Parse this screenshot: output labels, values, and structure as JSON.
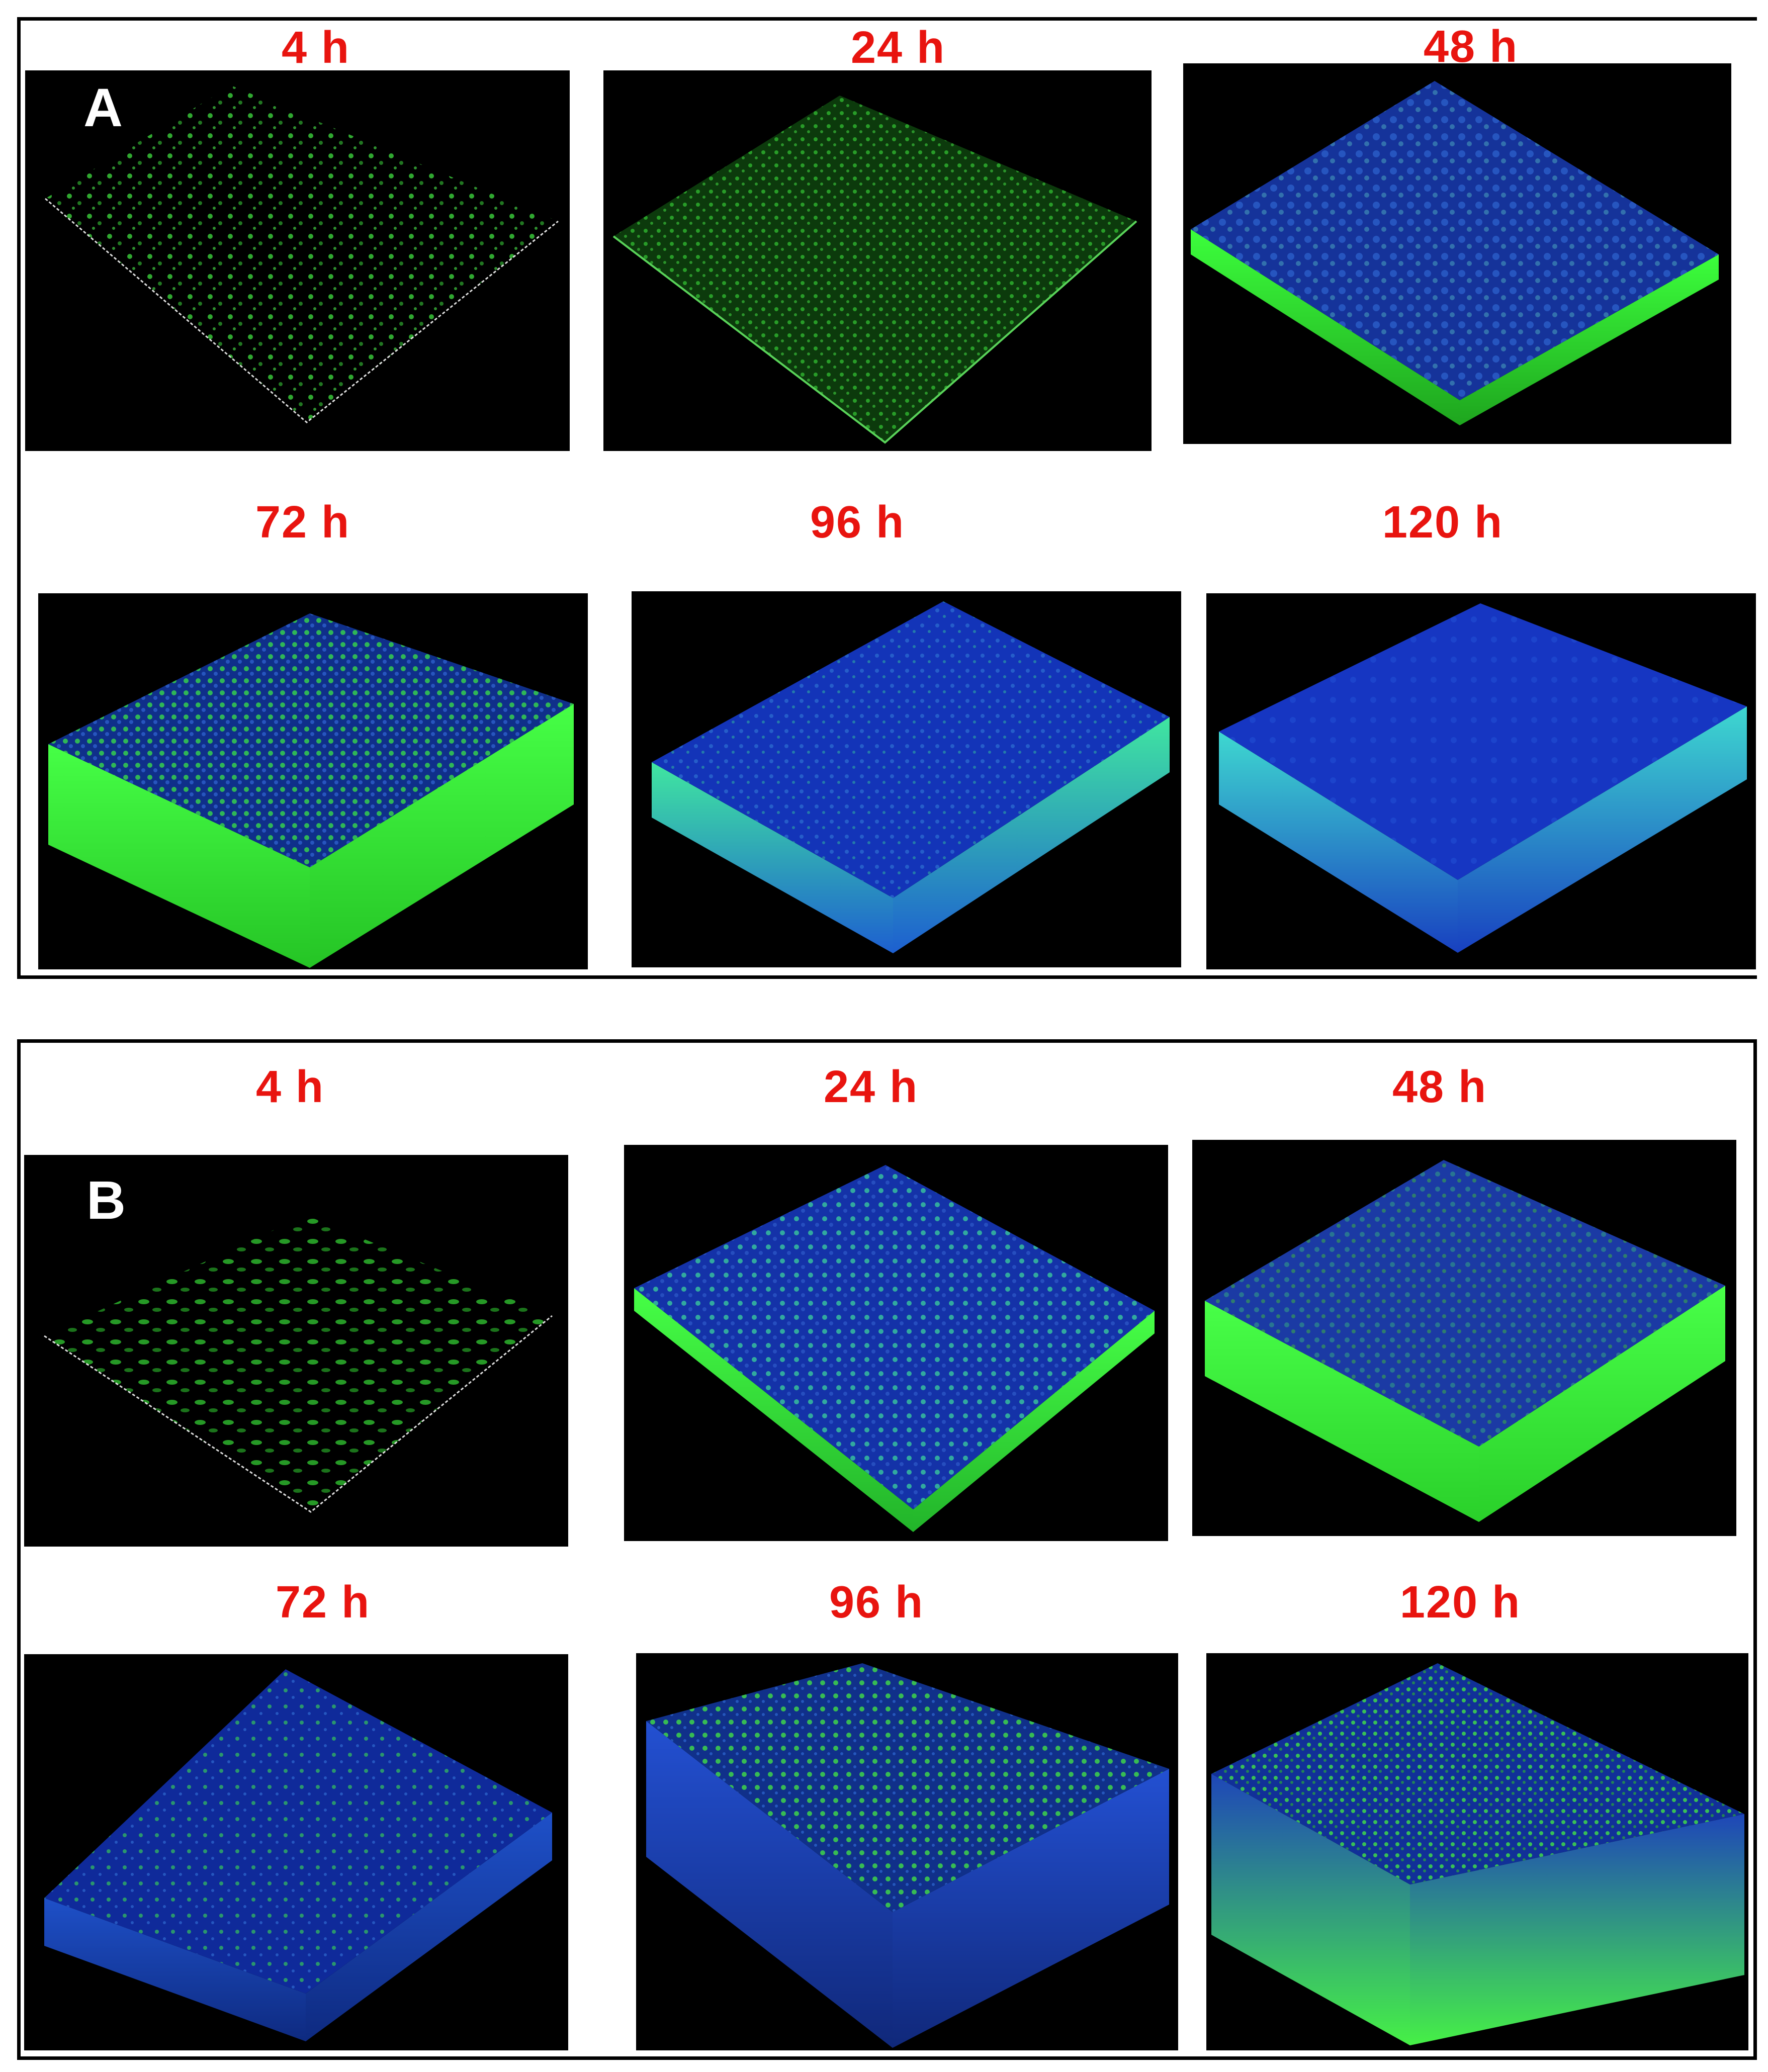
{
  "panels": [
    {
      "letter": "A",
      "time_labels": [
        "4 h",
        "24 h",
        "48 h",
        "72 h",
        "96 h",
        "120 h"
      ]
    },
    {
      "letter": "B",
      "time_labels": [
        "4 h",
        "24 h",
        "48 h",
        "72 h",
        "96 h",
        "120 h"
      ]
    }
  ],
  "colors": {
    "label": "#e8140f",
    "border": "#000000",
    "background": "#ffffff",
    "green_stain": "#3cff3c",
    "blue_stain": "#1a2fd0"
  }
}
